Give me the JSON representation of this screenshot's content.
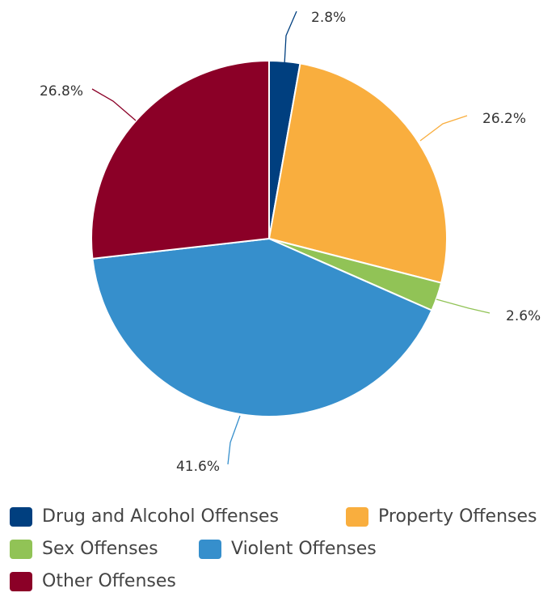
{
  "chart_data": {
    "type": "pie",
    "title": "",
    "start_angle_deg": 0,
    "direction": "clockwise",
    "slices": [
      {
        "name": "Drug and Alcohol Offenses",
        "value": 2.8,
        "label": "2.8%",
        "color": "#003f7f"
      },
      {
        "name": "Property Offenses",
        "value": 26.2,
        "label": "26.2%",
        "color": "#f9ae3e"
      },
      {
        "name": "Sex Offenses",
        "value": 2.6,
        "label": "2.6%",
        "color": "#91c356"
      },
      {
        "name": "Violent Offenses",
        "value": 41.6,
        "label": "41.6%",
        "color": "#368fcc"
      },
      {
        "name": "Other Offenses",
        "value": 26.8,
        "label": "26.8%",
        "color": "#8b0027"
      }
    ],
    "legend": {
      "placement": "bottom",
      "items": [
        {
          "label": "Drug and Alcohol Offenses",
          "color": "#003f7f"
        },
        {
          "label": "Property Offenses",
          "color": "#f9ae3e"
        },
        {
          "label": "Sex Offenses",
          "color": "#91c356"
        },
        {
          "label": "Violent Offenses",
          "color": "#368fcc"
        },
        {
          "label": "Other Offenses",
          "color": "#8b0027"
        }
      ]
    }
  }
}
